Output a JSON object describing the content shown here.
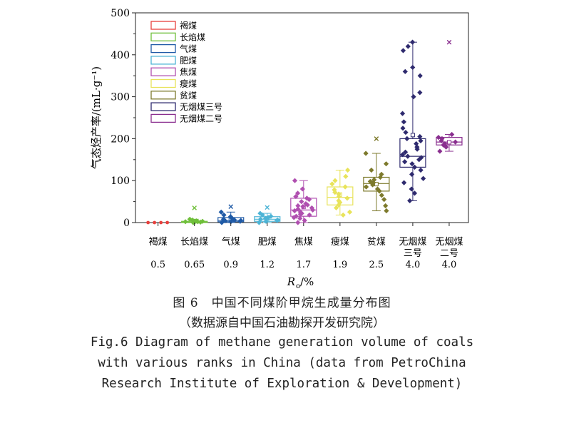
{
  "chart_data": {
    "type": "box",
    "ylabel": "气态烃产率/(mL·g⁻¹)",
    "xlabel_main": "R",
    "xlabel_sub": "o",
    "xlabel_unit": "/%",
    "ylim": [
      0,
      500
    ],
    "yticks": [
      0,
      100,
      200,
      300,
      400,
      500
    ],
    "categories": [
      {
        "name": "褐煤",
        "name2": "",
        "ro": "0.5",
        "color": "#e8403d",
        "marker": "circle",
        "q1": 0,
        "median": 0,
        "q3": 0,
        "wlo": 0,
        "whi": 0,
        "points": [
          0,
          0,
          0,
          0
        ],
        "outliers": []
      },
      {
        "name": "长焰煤",
        "name2": "",
        "ro": "0.65",
        "color": "#6fbf3a",
        "marker": "diamond",
        "q1": 0,
        "median": 1,
        "q3": 3,
        "wlo": 0,
        "whi": 8,
        "points": [
          0,
          1,
          2,
          3,
          4,
          6,
          8,
          1,
          2
        ],
        "outliers": [
          35
        ]
      },
      {
        "name": "气煤",
        "name2": "",
        "ro": "0.9",
        "color": "#1f5aa6",
        "marker": "diamond",
        "q1": 2,
        "median": 5,
        "q3": 12,
        "wlo": 0,
        "whi": 25,
        "points": [
          0,
          2,
          4,
          6,
          8,
          10,
          14,
          18,
          25,
          3,
          5
        ],
        "outliers": [
          38
        ]
      },
      {
        "name": "肥煤",
        "name2": "",
        "ro": "1.2",
        "color": "#4db4d6",
        "marker": "diamond",
        "q1": 3,
        "median": 8,
        "q3": 14,
        "wlo": 0,
        "whi": 22,
        "points": [
          0,
          3,
          5,
          8,
          10,
          12,
          15,
          18,
          22,
          6,
          9
        ],
        "outliers": [
          36
        ]
      },
      {
        "name": "焦煤",
        "name2": "",
        "ro": "1.7",
        "color": "#b04fb0",
        "marker": "diamond",
        "q1": 15,
        "median": 30,
        "q3": 58,
        "wlo": 0,
        "whi": 100,
        "points": [
          0,
          5,
          10,
          15,
          18,
          20,
          25,
          28,
          30,
          32,
          35,
          38,
          40,
          45,
          50,
          55,
          58,
          62,
          70,
          80,
          100,
          12,
          22,
          42
        ],
        "outliers": []
      },
      {
        "name": "瘦煤",
        "name2": "",
        "ro": "1.9",
        "color": "#e8e35a",
        "marker": "diamond",
        "q1": 42,
        "median": 60,
        "q3": 85,
        "wlo": 18,
        "whi": 125,
        "points": [
          18,
          25,
          35,
          42,
          48,
          52,
          58,
          62,
          68,
          72,
          78,
          85,
          92,
          100,
          110,
          125
        ],
        "outliers": []
      },
      {
        "name": "贫煤",
        "name2": "",
        "ro": "2.5",
        "color": "#7d7a2c",
        "marker": "diamond",
        "q1": 75,
        "median": 93,
        "q3": 108,
        "wlo": 28,
        "whi": 165,
        "points": [
          28,
          40,
          55,
          65,
          75,
          80,
          85,
          90,
          95,
          98,
          102,
          108,
          115,
          125,
          140,
          165
        ],
        "outliers": [
          200
        ]
      },
      {
        "name": "无烟煤",
        "name2": "三号",
        "ro": "4.0",
        "color": "#2e2a6e",
        "marker": "diamond",
        "q1": 132,
        "median": 158,
        "q3": 200,
        "wlo": 52,
        "whi": 430,
        "points": [
          52,
          70,
          80,
          95,
          105,
          115,
          125,
          132,
          140,
          145,
          150,
          155,
          158,
          162,
          168,
          175,
          180,
          188,
          195,
          200,
          205,
          215,
          225,
          240,
          260,
          300,
          310,
          350,
          360,
          370,
          410,
          420,
          430
        ],
        "outliers": []
      },
      {
        "name": "无烟煤",
        "name2": "二号",
        "ro": "4.0",
        "color": "#8a2f8f",
        "marker": "diamond",
        "q1": 185,
        "median": 192,
        "q3": 203,
        "wlo": 170,
        "whi": 210,
        "points": [
          170,
          180,
          185,
          188,
          192,
          195,
          200,
          203,
          210
        ],
        "outliers": [
          430
        ]
      }
    ],
    "legend": [
      "褐煤",
      "长焰煤",
      "气煤",
      "肥煤",
      "焦煤",
      "瘦煤",
      "贫煤",
      "无烟煤三号",
      "无烟煤二号"
    ]
  },
  "caption": {
    "cn_line1": "图 6　中国不同煤阶甲烷生成量分布图",
    "cn_line2": "（数据源自中国石油勘探开发研究院）",
    "en_line1": "Fig.6 Diagram of methane generation volume of coals",
    "en_line2": "with various ranks in China (data from PetroChina",
    "en_line3": "Research Institute of Exploration & Development)"
  }
}
